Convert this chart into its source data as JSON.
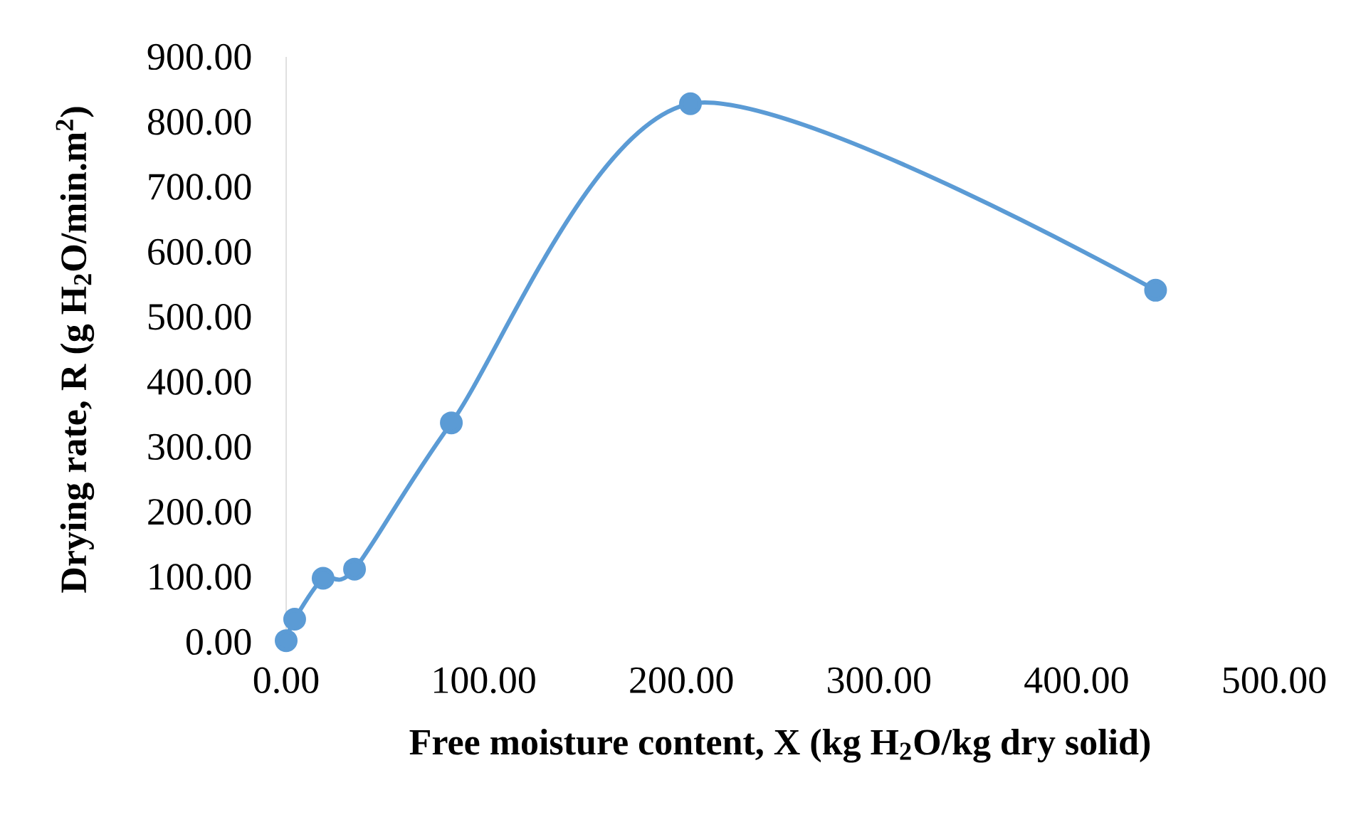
{
  "chart_data": {
    "type": "line",
    "xlabel": "Free moisture content, X (kg H$_{2}$O/kg dry solid)",
    "ylabel": "Drying rate, R (g H$_{2}$O/min.m$^{2}$)",
    "x": [
      0,
      4.3,
      18.7,
      34.6,
      83.6,
      204.6,
      440
    ],
    "series": [
      {
        "color": "#5b9bd5",
        "values": [
          2,
          35,
          98,
          112,
          337,
          828,
          541
        ]
      }
    ],
    "marker": "circle",
    "line_style": "solid",
    "grid": false,
    "xlim": [
      0,
      500
    ],
    "ylim": [
      0,
      900
    ],
    "xticks": [
      {
        "value": 0,
        "label": "0.00"
      },
      {
        "value": 100,
        "label": "100.00"
      },
      {
        "value": 200,
        "label": "200.00"
      },
      {
        "value": 300,
        "label": "300.00"
      },
      {
        "value": 400,
        "label": "400.00"
      },
      {
        "value": 500,
        "label": "500.00"
      }
    ],
    "yticks": [
      {
        "value": 0,
        "label": "0.00"
      },
      {
        "value": 100,
        "label": "100.00"
      },
      {
        "value": 200,
        "label": "200.00"
      },
      {
        "value": 300,
        "label": "300.00"
      },
      {
        "value": 400,
        "label": "400.00"
      },
      {
        "value": 500,
        "label": "500.00"
      },
      {
        "value": 600,
        "label": "600.00"
      },
      {
        "value": 700,
        "label": "700.00"
      },
      {
        "value": 800,
        "label": "800.00"
      },
      {
        "value": 900,
        "label": "900.00"
      }
    ]
  }
}
